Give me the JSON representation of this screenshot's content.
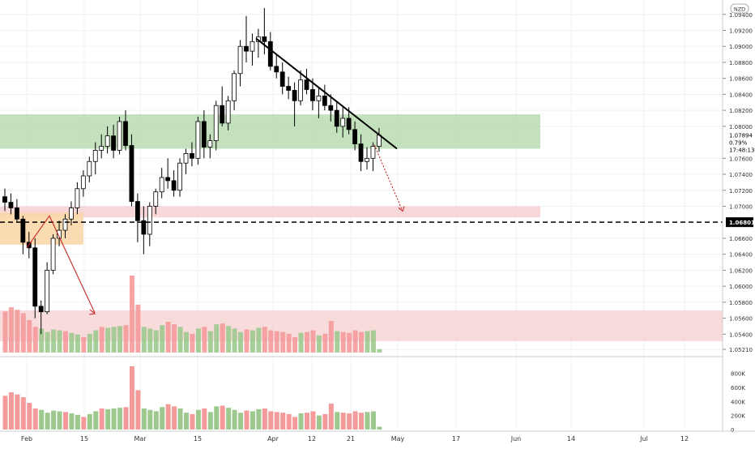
{
  "header": {
    "currency_badge": "NZD"
  },
  "colors": {
    "up": "#ffffff",
    "down": "#000000",
    "candle_stroke": "#000000",
    "vol_up": "#9dc98e",
    "vol_down": "#f59a9a",
    "green_zone": "#b9dcb0",
    "red_zone": "#f6d3d3",
    "orange_zone": "#fbd7a8",
    "trend_line": "#000000",
    "arrow": "#c62828",
    "grid": "#eef1f5",
    "axis_text": "#333333"
  },
  "chart_data": [
    {
      "type": "candlestick",
      "title": "",
      "x_ticks": [
        "Feb",
        "15",
        "Mar",
        "15",
        "Apr",
        "12",
        "21",
        "May",
        "17",
        "Jun",
        "14",
        "Jul",
        "12"
      ],
      "y_ticks": [
        "1.09400",
        "1.09200",
        "1.09000",
        "1.08800",
        "1.08600",
        "1.08400",
        "1.08200",
        "1.08000",
        "1.07600",
        "1.07400",
        "1.07200",
        "1.07000",
        "1.06600",
        "1.06400",
        "1.06200",
        "1.06000",
        "1.05800",
        "1.05600",
        "1.05400",
        "1.05210"
      ],
      "ylim": [
        1.0516,
        1.0958
      ],
      "last_price": "1.07894",
      "change_pct": "0.79%",
      "countdown": "17:48:13",
      "marked_level": "1.06801",
      "candles": [
        [
          1.0712,
          1.0722,
          1.0694,
          1.0705
        ],
        [
          1.0705,
          1.0716,
          1.069,
          1.0698
        ],
        [
          1.0698,
          1.0709,
          1.068,
          1.0684
        ],
        [
          1.0684,
          1.0688,
          1.064,
          1.0655
        ],
        [
          1.0655,
          1.0668,
          1.0635,
          1.0648
        ],
        [
          1.0648,
          1.066,
          1.056,
          1.0575
        ],
        [
          1.0575,
          1.0582,
          1.054,
          1.0568
        ],
        [
          1.0568,
          1.063,
          1.0565,
          1.062
        ],
        [
          1.062,
          1.0665,
          1.0615,
          1.066
        ],
        [
          1.066,
          1.0682,
          1.065,
          1.067
        ],
        [
          1.067,
          1.069,
          1.066,
          1.0684
        ],
        [
          1.0684,
          1.0706,
          1.0676,
          1.0698
        ],
        [
          1.0698,
          1.073,
          1.069,
          1.0722
        ],
        [
          1.0722,
          1.0745,
          1.0712,
          1.0738
        ],
        [
          1.0738,
          1.0762,
          1.073,
          1.0756
        ],
        [
          1.0756,
          1.078,
          1.074,
          1.077
        ],
        [
          1.077,
          1.079,
          1.076,
          1.0775
        ],
        [
          1.0775,
          1.08,
          1.0766,
          1.0788
        ],
        [
          1.0788,
          1.0802,
          1.076,
          1.077
        ],
        [
          1.077,
          1.0812,
          1.0765,
          1.0806
        ],
        [
          1.0806,
          1.082,
          1.077,
          1.0776
        ],
        [
          1.0776,
          1.079,
          1.07,
          1.0706
        ],
        [
          1.0706,
          1.0716,
          1.0655,
          1.0682
        ],
        [
          1.0682,
          1.07,
          1.064,
          1.0665
        ],
        [
          1.0665,
          1.0705,
          1.065,
          1.07
        ],
        [
          1.07,
          1.0722,
          1.069,
          1.0718
        ],
        [
          1.0718,
          1.0748,
          1.071,
          1.0736
        ],
        [
          1.0736,
          1.076,
          1.0722,
          1.0732
        ],
        [
          1.0732,
          1.0745,
          1.0712,
          1.072
        ],
        [
          1.072,
          1.076,
          1.0712,
          1.0754
        ],
        [
          1.0754,
          1.0772,
          1.074,
          1.0766
        ],
        [
          1.0766,
          1.078,
          1.075,
          1.076
        ],
        [
          1.076,
          1.0812,
          1.0752,
          1.0806
        ],
        [
          1.0806,
          1.082,
          1.076,
          1.0774
        ],
        [
          1.0774,
          1.079,
          1.076,
          1.0782
        ],
        [
          1.0782,
          1.0832,
          1.077,
          1.0826
        ],
        [
          1.0826,
          1.085,
          1.08,
          1.0804
        ],
        [
          1.0804,
          1.0838,
          1.0795,
          1.0832
        ],
        [
          1.0832,
          1.087,
          1.082,
          1.0866
        ],
        [
          1.0866,
          1.0908,
          1.085,
          1.09
        ],
        [
          1.09,
          1.0938,
          1.088,
          1.0894
        ],
        [
          1.0894,
          1.0916,
          1.0876,
          1.0906
        ],
        [
          1.0906,
          1.0922,
          1.0886,
          1.0912
        ],
        [
          1.0912,
          1.0948,
          1.089,
          1.0906
        ],
        [
          1.0906,
          1.0918,
          1.087,
          1.0875
        ],
        [
          1.0875,
          1.089,
          1.086,
          1.0868
        ],
        [
          1.0868,
          1.088,
          1.084,
          1.085
        ],
        [
          1.085,
          1.0862,
          1.0834,
          1.0845
        ],
        [
          1.0845,
          1.0855,
          1.08,
          1.0832
        ],
        [
          1.0832,
          1.087,
          1.0826,
          1.0858
        ],
        [
          1.0858,
          1.0872,
          1.084,
          1.0846
        ],
        [
          1.0846,
          1.086,
          1.082,
          1.0832
        ],
        [
          1.0832,
          1.0848,
          1.081,
          1.0838
        ],
        [
          1.0838,
          1.0852,
          1.082,
          1.0826
        ],
        [
          1.0826,
          1.084,
          1.0806,
          1.082
        ],
        [
          1.082,
          1.0832,
          1.0792,
          1.08
        ],
        [
          1.08,
          1.0826,
          1.0786,
          1.081
        ],
        [
          1.081,
          1.0824,
          1.079,
          1.0796
        ],
        [
          1.0796,
          1.0806,
          1.077,
          1.0778
        ],
        [
          1.0778,
          1.079,
          1.0744,
          1.0756
        ],
        [
          1.0756,
          1.0774,
          1.0746,
          1.076
        ],
        [
          1.076,
          1.078,
          1.0744,
          1.0775
        ],
        [
          1.0775,
          1.0798,
          1.0768,
          1.0789
        ]
      ],
      "volume": {
        "yticks": [
          "800K",
          "600K",
          "400K",
          "200K",
          "0"
        ],
        "ylim": [
          0,
          900000
        ],
        "values": [
          480000,
          530000,
          500000,
          460000,
          380000,
          300000,
          280000,
          240000,
          270000,
          260000,
          250000,
          230000,
          210000,
          180000,
          220000,
          260000,
          300000,
          290000,
          300000,
          310000,
          320000,
          900000,
          560000,
          300000,
          280000,
          260000,
          320000,
          360000,
          330000,
          300000,
          240000,
          220000,
          280000,
          300000,
          250000,
          330000,
          340000,
          310000,
          280000,
          240000,
          270000,
          260000,
          290000,
          300000,
          260000,
          250000,
          240000,
          220000,
          180000,
          230000,
          240000,
          260000,
          200000,
          220000,
          370000,
          250000,
          240000,
          230000,
          260000,
          240000,
          250000,
          260000,
          40000
        ],
        "up": [
          false,
          false,
          false,
          false,
          false,
          false,
          true,
          true,
          true,
          true,
          false,
          true,
          true,
          false,
          true,
          true,
          false,
          true,
          true,
          true,
          false,
          false,
          false,
          true,
          true,
          true,
          true,
          false,
          false,
          true,
          true,
          false,
          true,
          false,
          true,
          true,
          false,
          true,
          true,
          true,
          false,
          true,
          true,
          false,
          false,
          false,
          false,
          false,
          false,
          true,
          false,
          false,
          true,
          false,
          false,
          true,
          false,
          false,
          false,
          false,
          true,
          true,
          true
        ]
      }
    }
  ]
}
